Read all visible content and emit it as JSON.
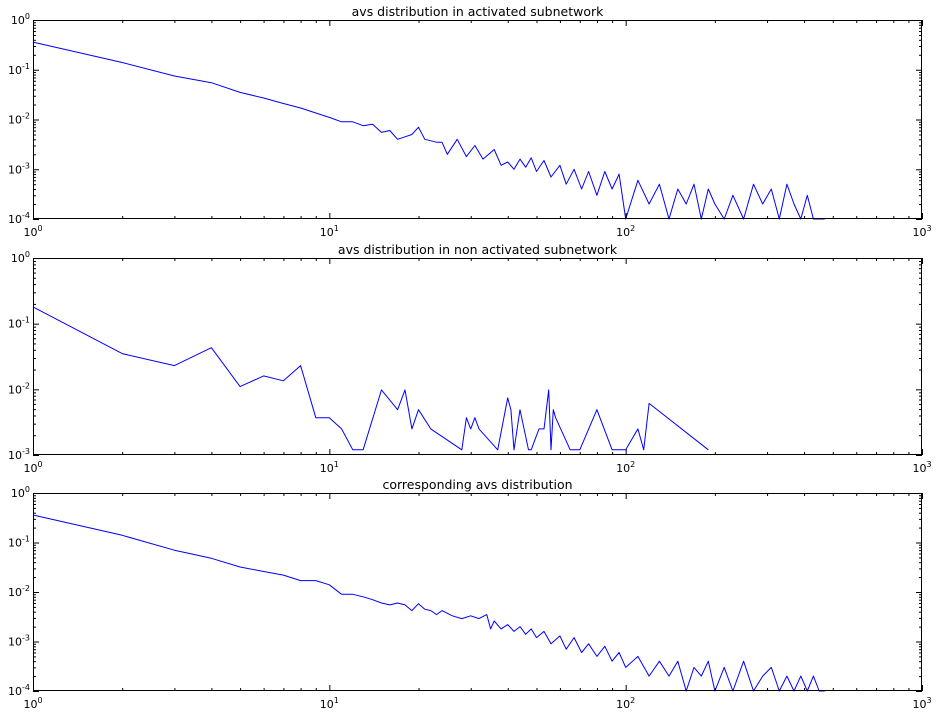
{
  "chart_data": [
    {
      "type": "line",
      "title": "avs distribution in activated subnetwork",
      "xscale": "log",
      "yscale": "log",
      "xlim": [
        1,
        1000
      ],
      "ylim": [
        0.0001,
        1
      ],
      "xticks": [
        1,
        10,
        100,
        1000
      ],
      "xtick_labels": [
        {
          "base": "10",
          "exp": "0"
        },
        {
          "base": "10",
          "exp": "1"
        },
        {
          "base": "10",
          "exp": "2"
        },
        {
          "base": "10",
          "exp": "3"
        }
      ],
      "yticks": [
        0.0001,
        0.001,
        0.01,
        0.1,
        1
      ],
      "ytick_labels": [
        {
          "base": "10",
          "exp": "-4"
        },
        {
          "base": "10",
          "exp": "-3"
        },
        {
          "base": "10",
          "exp": "-2"
        },
        {
          "base": "10",
          "exp": "-1"
        },
        {
          "base": "10",
          "exp": "0"
        }
      ],
      "grid": false,
      "series": [
        {
          "color": "#0000ff",
          "x": [
            1,
            2,
            3,
            4,
            5,
            6,
            7,
            8,
            9,
            10,
            11,
            12,
            13,
            14,
            15,
            16,
            17,
            18,
            19,
            20,
            21,
            23,
            24,
            25,
            27,
            29,
            31,
            33,
            36,
            38,
            40,
            42,
            44,
            46,
            48,
            50,
            53,
            56,
            60,
            63,
            67,
            71,
            75,
            80,
            85,
            90,
            95,
            100,
            110,
            120,
            130,
            140,
            150,
            160,
            170,
            180,
            190,
            200,
            215,
            230,
            250,
            270,
            290,
            310,
            330,
            350,
            370,
            390,
            410,
            430,
            450,
            470
          ],
          "y": [
            0.36,
            0.14,
            0.075,
            0.055,
            0.035,
            0.027,
            0.021,
            0.017,
            0.0135,
            0.011,
            0.009,
            0.009,
            0.0075,
            0.008,
            0.0055,
            0.006,
            0.004,
            0.0045,
            0.005,
            0.007,
            0.004,
            0.0035,
            0.0035,
            0.002,
            0.004,
            0.0018,
            0.003,
            0.0016,
            0.0025,
            0.0012,
            0.0014,
            0.001,
            0.0016,
            0.0011,
            0.0017,
            0.0009,
            0.0015,
            0.0007,
            0.0012,
            0.0005,
            0.001,
            0.0004,
            0.0009,
            0.0003,
            0.0009,
            0.0004,
            0.0008,
            0.0001,
            0.0006,
            0.0002,
            0.0005,
            0.0001,
            0.0004,
            0.0002,
            0.0005,
            0.0001,
            0.0004,
            0.0002,
            0.0001,
            0.0003,
            0.0001,
            0.0005,
            0.0002,
            0.0004,
            0.0001,
            0.0005,
            0.0002,
            0.0001,
            0.0003,
            0.0001,
            0.0001,
            0.0001
          ]
        }
      ]
    },
    {
      "type": "line",
      "title": "avs distribution in non activated subnetwork",
      "xscale": "log",
      "yscale": "log",
      "xlim": [
        1,
        1000
      ],
      "ylim": [
        0.001,
        1
      ],
      "xticks": [
        1,
        10,
        100,
        1000
      ],
      "xtick_labels": [
        {
          "base": "10",
          "exp": "0"
        },
        {
          "base": "10",
          "exp": "1"
        },
        {
          "base": "10",
          "exp": "2"
        },
        {
          "base": "10",
          "exp": "3"
        }
      ],
      "yticks": [
        0.001,
        0.01,
        0.1,
        1
      ],
      "ytick_labels": [
        {
          "base": "10",
          "exp": "-3"
        },
        {
          "base": "10",
          "exp": "-2"
        },
        {
          "base": "10",
          "exp": "-1"
        },
        {
          "base": "10",
          "exp": "0"
        }
      ],
      "grid": false,
      "series": [
        {
          "color": "#0000ff",
          "x": [
            1,
            2,
            3,
            4,
            5,
            6,
            7,
            8,
            9,
            10,
            11,
            12,
            13,
            15,
            17,
            18,
            19,
            20,
            22,
            28,
            29,
            30,
            31,
            32,
            37,
            40,
            41,
            42,
            44,
            47,
            48,
            51,
            53,
            55,
            56,
            57,
            58,
            65,
            70,
            80,
            90,
            100,
            110,
            115,
            120,
            190
          ],
          "y": [
            0.18,
            0.035,
            0.023,
            0.043,
            0.011,
            0.016,
            0.0135,
            0.023,
            0.0037,
            0.0037,
            0.0025,
            0.0012,
            0.0012,
            0.0098,
            0.0049,
            0.0098,
            0.0025,
            0.0049,
            0.0025,
            0.0012,
            0.0037,
            0.0025,
            0.0037,
            0.0025,
            0.0012,
            0.0074,
            0.0049,
            0.0012,
            0.0049,
            0.0012,
            0.0012,
            0.0025,
            0.0025,
            0.0098,
            0.0012,
            0.0049,
            0.0037,
            0.0012,
            0.0012,
            0.0049,
            0.0012,
            0.0012,
            0.0025,
            0.0012,
            0.0061,
            0.0012
          ]
        }
      ]
    },
    {
      "type": "line",
      "title": "corresponding avs distribution",
      "xscale": "log",
      "yscale": "log",
      "xlim": [
        1,
        1000
      ],
      "ylim": [
        0.0001,
        1
      ],
      "xticks": [
        1,
        10,
        100,
        1000
      ],
      "xtick_labels": [
        {
          "base": "10",
          "exp": "0"
        },
        {
          "base": "10",
          "exp": "1"
        },
        {
          "base": "10",
          "exp": "2"
        },
        {
          "base": "10",
          "exp": "3"
        }
      ],
      "yticks": [
        0.0001,
        0.001,
        0.01,
        0.1,
        1
      ],
      "ytick_labels": [
        {
          "base": "10",
          "exp": "-4"
        },
        {
          "base": "10",
          "exp": "-3"
        },
        {
          "base": "10",
          "exp": "-2"
        },
        {
          "base": "10",
          "exp": "-1"
        },
        {
          "base": "10",
          "exp": "0"
        }
      ],
      "grid": false,
      "series": [
        {
          "color": "#0000ff",
          "x": [
            1,
            2,
            3,
            4,
            5,
            6,
            7,
            8,
            9,
            10,
            11,
            12,
            13,
            14,
            15,
            16,
            17,
            18,
            19,
            20,
            21,
            22,
            23,
            24,
            26,
            28,
            30,
            32,
            34,
            35,
            36,
            38,
            40,
            42,
            44,
            46,
            48,
            50,
            53,
            56,
            60,
            63,
            67,
            71,
            75,
            80,
            85,
            90,
            95,
            100,
            110,
            120,
            130,
            140,
            150,
            160,
            170,
            180,
            190,
            200,
            215,
            230,
            250,
            270,
            290,
            310,
            330,
            350,
            370,
            390,
            410,
            430,
            450,
            470
          ],
          "y": [
            0.36,
            0.14,
            0.07,
            0.048,
            0.032,
            0.026,
            0.022,
            0.017,
            0.017,
            0.014,
            0.009,
            0.009,
            0.008,
            0.007,
            0.006,
            0.0055,
            0.006,
            0.0055,
            0.0042,
            0.0058,
            0.0045,
            0.0042,
            0.0035,
            0.0042,
            0.0033,
            0.0029,
            0.0033,
            0.0029,
            0.0035,
            0.0018,
            0.0026,
            0.0018,
            0.0022,
            0.0016,
            0.002,
            0.0014,
            0.0018,
            0.0012,
            0.0016,
            0.0009,
            0.0013,
            0.0007,
            0.0012,
            0.0006,
            0.0009,
            0.0005,
            0.0008,
            0.0004,
            0.0006,
            0.0003,
            0.0005,
            0.0002,
            0.0004,
            0.0002,
            0.0004,
            0.0001,
            0.0003,
            0.0002,
            0.0004,
            0.0001,
            0.0003,
            0.0001,
            0.0004,
            0.0001,
            0.0002,
            0.0003,
            0.0001,
            0.0002,
            0.0001,
            0.0002,
            0.0001,
            0.0002,
            0.0001,
            0.0001
          ]
        }
      ]
    }
  ]
}
